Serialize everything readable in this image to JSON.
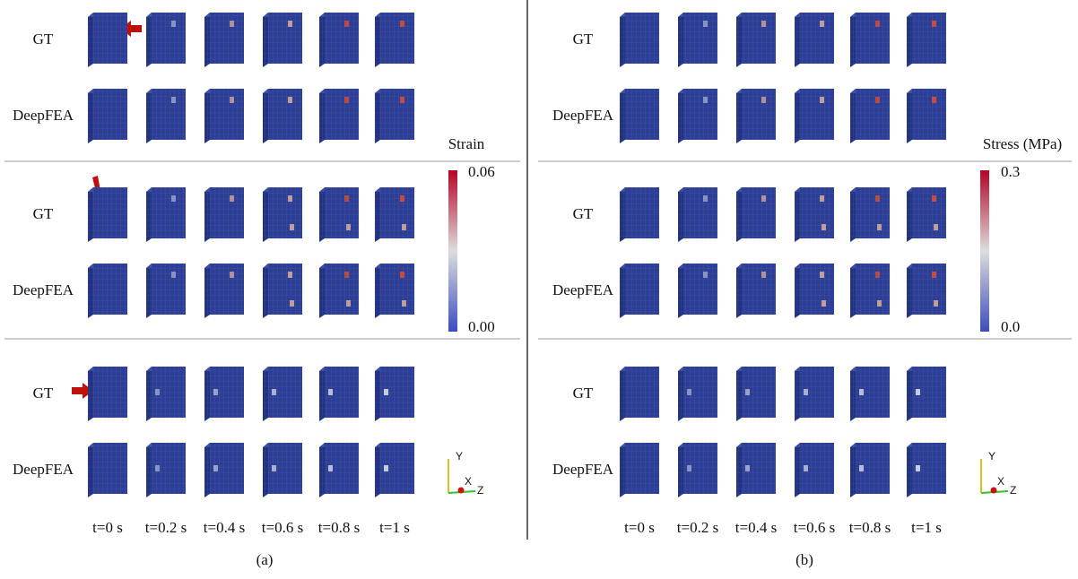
{
  "panels": [
    {
      "label": "(a)",
      "colorbar": {
        "title": "Strain",
        "max": "0.06",
        "min": "0.00"
      },
      "rows": [
        "GT",
        "DeepFEA",
        "GT",
        "DeepFEA",
        "GT",
        "DeepFEA"
      ],
      "times": [
        "t=0 s",
        "t=0.2 s",
        "t=0.4 s",
        "t=0.6 s",
        "t=0.8 s",
        "t=1 s"
      ],
      "axes": [
        "Y",
        "X",
        "Z"
      ]
    },
    {
      "label": "(b)",
      "colorbar": {
        "title": "Stress (MPa)",
        "max": "0.3",
        "min": "0.0"
      },
      "rows": [
        "GT",
        "DeepFEA",
        "GT",
        "DeepFEA",
        "GT",
        "DeepFEA"
      ],
      "times": [
        "t=0 s",
        "t=0.2 s",
        "t=0.4 s",
        "t=0.6 s",
        "t=0.8 s",
        "t=1 s"
      ],
      "axes": [
        "Y",
        "X",
        "Z"
      ]
    }
  ]
}
